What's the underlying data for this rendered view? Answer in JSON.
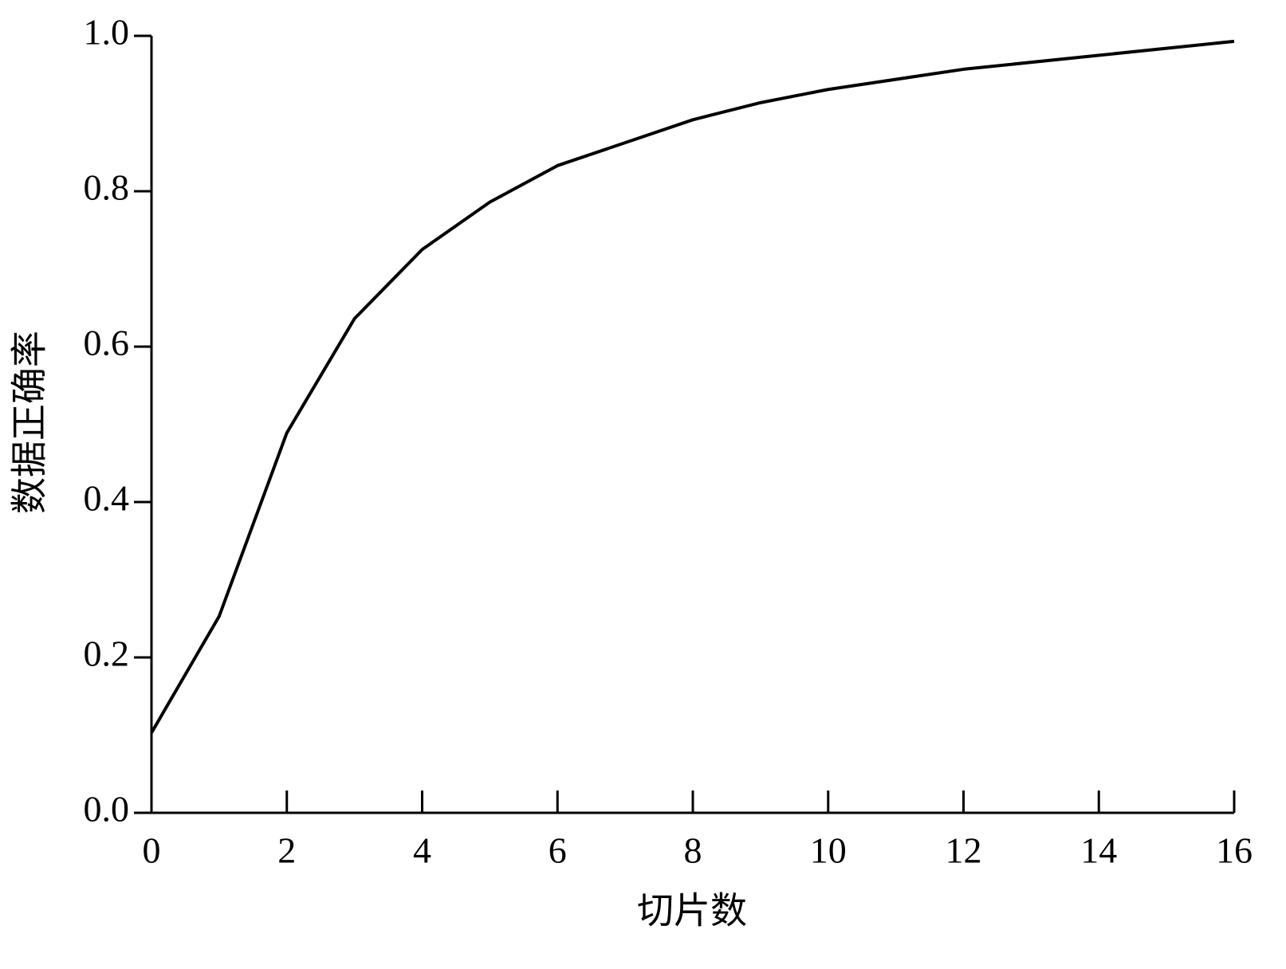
{
  "chart_data": {
    "type": "line",
    "x_label": "切片数",
    "y_label": "数据正确率",
    "x": [
      0,
      1,
      2,
      3,
      4,
      5,
      6,
      8,
      9,
      10,
      12,
      16
    ],
    "series": [
      {
        "color": "#000000",
        "values": [
          0.103,
          0.253,
          0.489,
          0.636,
          0.725,
          0.786,
          0.833,
          0.892,
          0.914,
          0.931,
          0.957,
          0.993
        ]
      }
    ],
    "xlim": [
      0,
      16
    ],
    "xticks": [
      0,
      2,
      4,
      6,
      8,
      10,
      12,
      14,
      16
    ],
    "ylim": [
      0,
      1
    ],
    "yticks": [
      {
        "value": 0,
        "label": "0.0"
      },
      0.2,
      0.4,
      0.6,
      0.8,
      {
        "value": 1,
        "label": "1.0"
      }
    ],
    "grid": false
  }
}
